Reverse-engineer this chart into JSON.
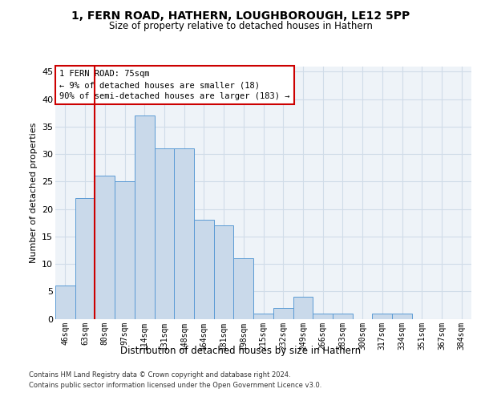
{
  "title_line1": "1, FERN ROAD, HATHERN, LOUGHBOROUGH, LE12 5PP",
  "title_line2": "Size of property relative to detached houses in Hathern",
  "xlabel": "Distribution of detached houses by size in Hathern",
  "ylabel": "Number of detached properties",
  "categories": [
    "46sqm",
    "63sqm",
    "80sqm",
    "97sqm",
    "114sqm",
    "131sqm",
    "148sqm",
    "164sqm",
    "181sqm",
    "198sqm",
    "215sqm",
    "232sqm",
    "249sqm",
    "266sqm",
    "283sqm",
    "300sqm",
    "317sqm",
    "334sqm",
    "351sqm",
    "367sqm",
    "384sqm"
  ],
  "values": [
    6,
    22,
    26,
    25,
    37,
    31,
    31,
    18,
    17,
    11,
    1,
    2,
    4,
    1,
    1,
    0,
    1,
    1,
    0,
    0,
    0
  ],
  "bar_color": "#c9d9ea",
  "bar_edge_color": "#5b9bd5",
  "grid_color": "#d0dce8",
  "background_color": "#eef3f8",
  "annotation_text": "1 FERN ROAD: 75sqm\n← 9% of detached houses are smaller (18)\n90% of semi-detached houses are larger (183) →",
  "annotation_box_facecolor": "#ffffff",
  "annotation_box_edgecolor": "#cc0000",
  "vline_color": "#cc0000",
  "vline_x_index": 2,
  "ylim": [
    0,
    46
  ],
  "yticks": [
    0,
    5,
    10,
    15,
    20,
    25,
    30,
    35,
    40,
    45
  ],
  "footnote_line1": "Contains HM Land Registry data © Crown copyright and database right 2024.",
  "footnote_line2": "Contains public sector information licensed under the Open Government Licence v3.0."
}
